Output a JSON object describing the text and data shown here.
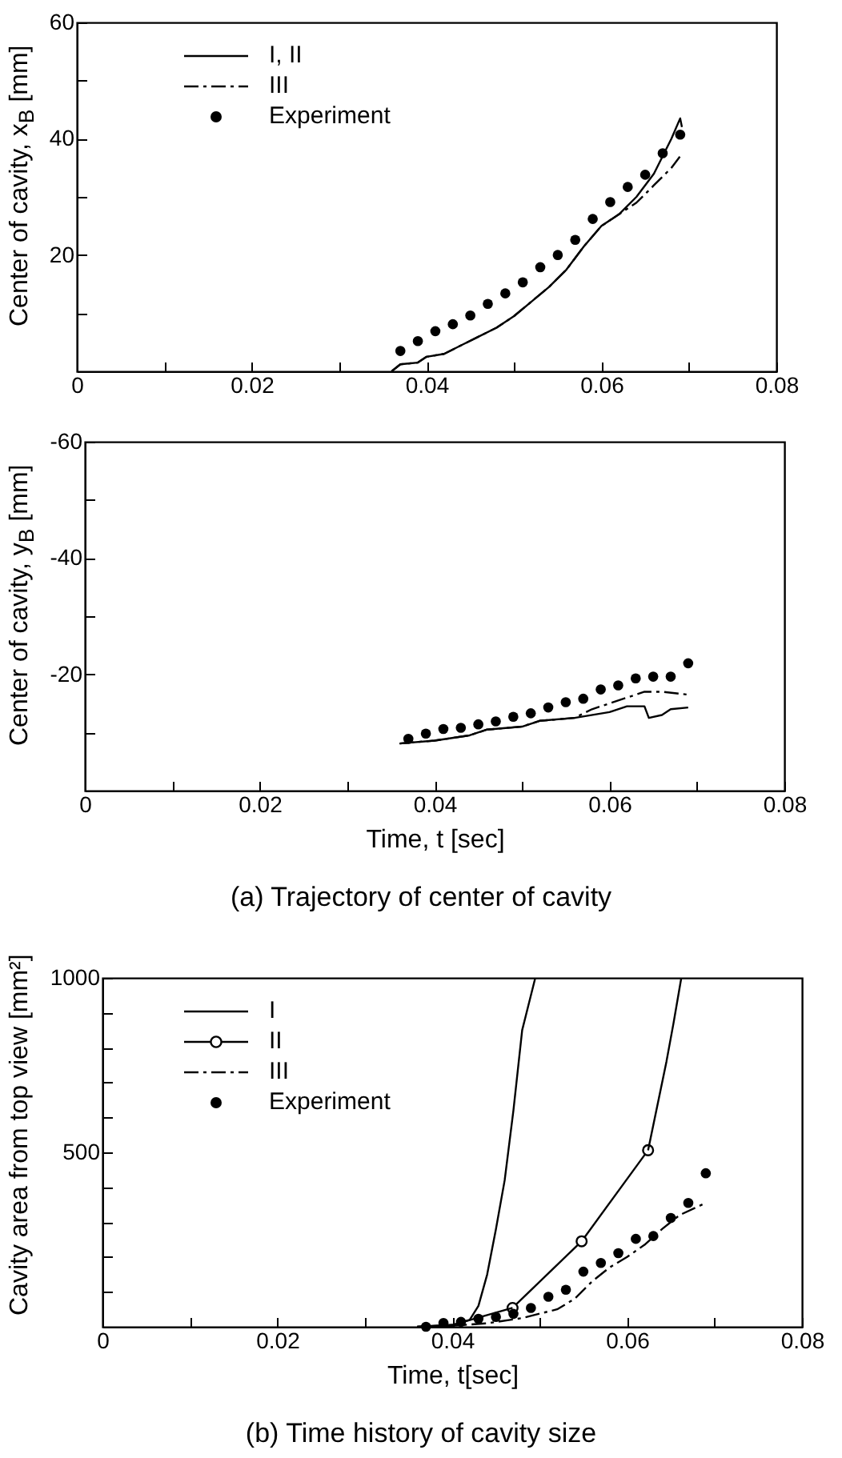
{
  "chart_data": [
    {
      "type": "line",
      "ylabel": "Center of cavity, x$_{B}$ [mm]",
      "legend": "top left",
      "xlim": [
        0,
        0.08
      ],
      "ylim": [
        0,
        60
      ],
      "xticks": [
        0,
        {
          "value": 0.01,
          "label": null
        },
        0.02,
        {
          "value": 0.03,
          "label": null
        },
        0.04,
        {
          "value": 0.05,
          "label": null
        },
        0.06,
        {
          "value": 0.07,
          "label": null
        },
        0.08
      ],
      "yticks": [
        {
          "value": 0,
          "label": null
        },
        {
          "value": 10,
          "label": null
        },
        20,
        {
          "value": 30,
          "label": null
        },
        40,
        {
          "value": 50,
          "label": null
        },
        60
      ],
      "series": [
        {
          "name": "I, II",
          "type": "line",
          "line_style": "solid",
          "color": "#000000",
          "x": [
            0.036,
            0.037,
            0.039,
            0.04,
            0.042,
            0.044,
            0.046,
            0.048,
            0.05,
            0.052,
            0.054,
            0.056,
            0.058,
            0.06,
            0.062,
            0.064,
            0.066,
            0.068,
            0.069,
            0.0692
          ],
          "values": [
            0,
            1.2,
            1.5,
            2.5,
            3,
            4.5,
            6,
            7.5,
            9.5,
            12,
            14.5,
            17.5,
            21.5,
            25,
            27,
            30,
            34,
            40,
            43.5,
            42
          ]
        },
        {
          "name": "III",
          "type": "line",
          "line_style": "dashed",
          "color": "#000000",
          "x": [
            0.036,
            0.037,
            0.039,
            0.04,
            0.042,
            0.044,
            0.046,
            0.048,
            0.05,
            0.052,
            0.054,
            0.056,
            0.058,
            0.06,
            0.062,
            0.064,
            0.066,
            0.068,
            0.069
          ],
          "values": [
            0,
            1.2,
            1.5,
            2.5,
            3,
            4.5,
            6,
            7.5,
            9.5,
            12,
            14.5,
            17.5,
            21.5,
            25,
            27,
            29,
            32,
            35,
            37
          ]
        },
        {
          "name": "Experiment",
          "type": "scatter",
          "marker": "circle",
          "color": "#000000",
          "x": [
            0.037,
            0.039,
            0.041,
            0.043,
            0.045,
            0.047,
            0.049,
            0.051,
            0.053,
            0.055,
            0.057,
            0.059,
            0.061,
            0.063,
            0.065,
            0.067,
            0.069
          ],
          "values": [
            3.5,
            5.2,
            6.9,
            8.1,
            9.6,
            11.6,
            13.4,
            15.3,
            17.9,
            20,
            22.6,
            26.2,
            29.1,
            31.7,
            33.8,
            37.5,
            40.7
          ]
        }
      ]
    },
    {
      "type": "line",
      "xlabel": "Time, t [sec]",
      "ylabel": "Center of cavity, y$_{B}$ [mm]",
      "annotations": [
        "(a) Trajectory of center of cavity"
      ],
      "xlim": [
        0,
        0.08
      ],
      "ylim": [
        0,
        -60
      ],
      "xticks": [
        0,
        {
          "value": 0.01,
          "label": null
        },
        0.02,
        {
          "value": 0.03,
          "label": null
        },
        0.04,
        {
          "value": 0.05,
          "label": null
        },
        0.06,
        {
          "value": 0.07,
          "label": null
        },
        0.08
      ],
      "yticks": [
        {
          "value": 0,
          "label": null
        },
        {
          "value": -10,
          "label": null
        },
        -20,
        {
          "value": -30,
          "label": null
        },
        -40,
        {
          "value": -50,
          "label": null
        },
        -60
      ],
      "series": [
        {
          "type": "line",
          "line_style": "solid",
          "color": "#000000",
          "x": [
            0.036,
            0.04,
            0.044,
            0.046,
            0.05,
            0.052,
            0.056,
            0.06,
            0.062,
            0.064,
            0.0645,
            0.066,
            0.067,
            0.069
          ],
          "values": [
            -8.1,
            -8.6,
            -9.5,
            -10.5,
            -11,
            -12,
            -12.5,
            -13.5,
            -14.5,
            -14.5,
            -12.5,
            -13,
            -14,
            -14.3
          ]
        },
        {
          "type": "line",
          "line_style": "dashed",
          "color": "#000000",
          "x": [
            0.036,
            0.04,
            0.044,
            0.046,
            0.05,
            0.052,
            0.056,
            0.058,
            0.06,
            0.062,
            0.064,
            0.066,
            0.069
          ],
          "values": [
            -8.1,
            -8.6,
            -9.5,
            -10.5,
            -11,
            -12,
            -12.5,
            -14,
            -15,
            -16,
            -17,
            -17,
            -16.5
          ]
        },
        {
          "type": "scatter",
          "marker": "circle",
          "color": "#000000",
          "x": [
            0.037,
            0.039,
            0.041,
            0.043,
            0.045,
            0.047,
            0.049,
            0.051,
            0.053,
            0.055,
            0.057,
            0.059,
            0.061,
            0.063,
            0.065,
            0.067,
            0.069
          ],
          "values": [
            -8.9,
            -9.8,
            -10.6,
            -10.8,
            -11.4,
            -11.9,
            -12.7,
            -13.3,
            -14.3,
            -15.2,
            -15.8,
            -17.4,
            -18.1,
            -19.3,
            -19.6,
            -19.6,
            -21.9
          ]
        }
      ]
    },
    {
      "type": "line",
      "xlabel": "Time, t[sec]",
      "ylabel": "Cavity area from top view [mm²]",
      "annotations": [
        "(b) Time history of cavity size"
      ],
      "legend": "top left",
      "xlim": [
        0,
        0.08
      ],
      "ylim": [
        0,
        1000
      ],
      "xticks": [
        0,
        {
          "value": 0.01,
          "label": null
        },
        0.02,
        {
          "value": 0.03,
          "label": null
        },
        0.04,
        {
          "value": 0.05,
          "label": null
        },
        0.06,
        {
          "value": 0.07,
          "label": null
        },
        0.08
      ],
      "yticks": [
        {
          "value": 0,
          "label": null
        },
        {
          "value": 100,
          "label": null
        },
        {
          "value": 200,
          "label": null
        },
        {
          "value": 300,
          "label": null
        },
        {
          "value": 400,
          "label": null
        },
        500,
        {
          "value": 600,
          "label": null
        },
        {
          "value": 700,
          "label": null
        },
        {
          "value": 800,
          "label": null
        },
        {
          "value": 900,
          "label": null
        },
        1000
      ],
      "series": [
        {
          "name": "I",
          "type": "line",
          "line_style": "solid",
          "color": "#000000",
          "x": [
            0.036,
            0.04,
            0.042,
            0.043,
            0.044,
            0.045,
            0.046,
            0.047,
            0.048,
            0.0495
          ],
          "values": [
            0,
            5,
            20,
            60,
            150,
            280,
            420,
            620,
            850,
            1000
          ]
        },
        {
          "name": "II",
          "type": "line",
          "line_style": "solid",
          "marker": "circle",
          "color": "#000000",
          "x": [
            0.0469,
            0.0548,
            0.0624
          ],
          "values": [
            54,
            245,
            506
          ]
        },
        {
          "type": "line",
          "line_style": "solid",
          "color": "#000000",
          "x": [
            0.036,
            0.04,
            0.0469
          ],
          "values": [
            0,
            5,
            54
          ]
        },
        {
          "type": "line",
          "line_style": "solid",
          "color": "#000000",
          "x": [
            0.0624,
            0.0645,
            0.0653,
            0.0662
          ],
          "values": [
            506,
            760,
            869,
            1000
          ]
        },
        {
          "name": "III",
          "type": "line",
          "line_style": "dashed",
          "color": "#000000",
          "x": [
            0.036,
            0.04,
            0.044,
            0.048,
            0.052,
            0.054,
            0.056,
            0.058,
            0.06,
            0.062,
            0.064,
            0.066,
            0.069
          ],
          "values": [
            0,
            3,
            10,
            25,
            50,
            80,
            130,
            170,
            200,
            235,
            280,
            320,
            355
          ]
        },
        {
          "name": "Experiment",
          "type": "scatter",
          "marker": "circle",
          "color": "#000000",
          "x": [
            0.037,
            0.039,
            0.041,
            0.043,
            0.045,
            0.047,
            0.049,
            0.051,
            0.053,
            0.055,
            0.057,
            0.059,
            0.061,
            0.063,
            0.065,
            0.067,
            0.069
          ],
          "values": [
            0,
            11,
            14,
            23,
            28,
            37,
            54,
            86,
            106,
            158,
            183,
            211,
            252,
            260,
            312,
            355,
            440
          ]
        }
      ]
    }
  ]
}
